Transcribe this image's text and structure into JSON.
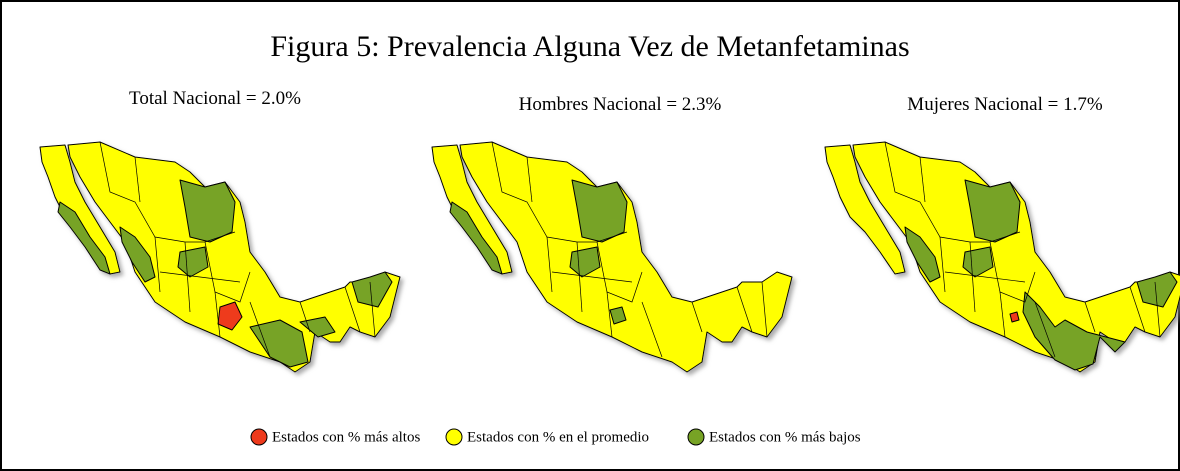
{
  "title": "Figura 5: Prevalencia Alguna Vez de Metanfetaminas",
  "maps": [
    {
      "subtitle": "Total Nacional = 2.0%"
    },
    {
      "subtitle": "Hombres Nacional = 2.3%"
    },
    {
      "subtitle": "Mujeres Nacional = 1.7%"
    }
  ],
  "legend": [
    {
      "label": "Estados con % más altos",
      "color": "#ee3a1c"
    },
    {
      "label": "Estados con % en el promedio",
      "color": "#ffff00"
    },
    {
      "label": "Estados con % más bajos",
      "color": "#77a325"
    }
  ]
}
